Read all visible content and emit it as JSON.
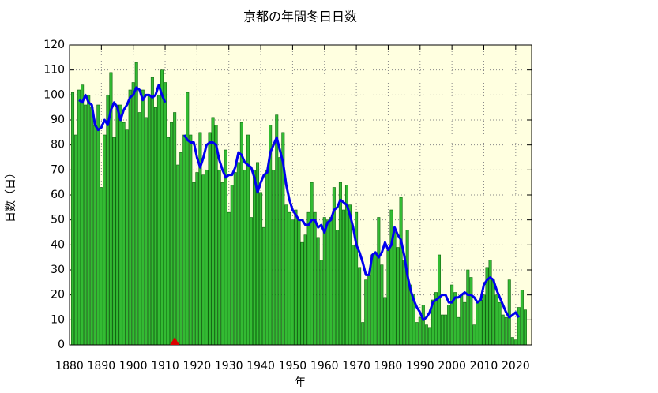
{
  "chart_data": {
    "type": "bar",
    "title": "京都の年間冬日日数",
    "xlabel": "年",
    "ylabel": "日数（日）",
    "x": [
      1881,
      1882,
      1883,
      1884,
      1885,
      1886,
      1887,
      1888,
      1889,
      1890,
      1891,
      1892,
      1893,
      1894,
      1895,
      1896,
      1897,
      1898,
      1899,
      1900,
      1901,
      1902,
      1903,
      1904,
      1905,
      1906,
      1907,
      1908,
      1909,
      1910,
      1911,
      1912,
      1913,
      1914,
      1915,
      1916,
      1917,
      1918,
      1919,
      1920,
      1921,
      1922,
      1923,
      1924,
      1925,
      1926,
      1927,
      1928,
      1929,
      1930,
      1931,
      1932,
      1933,
      1934,
      1935,
      1936,
      1937,
      1938,
      1939,
      1940,
      1941,
      1942,
      1943,
      1944,
      1945,
      1946,
      1947,
      1948,
      1949,
      1950,
      1951,
      1952,
      1953,
      1954,
      1955,
      1956,
      1957,
      1958,
      1959,
      1960,
      1961,
      1962,
      1963,
      1964,
      1965,
      1966,
      1967,
      1968,
      1969,
      1970,
      1971,
      1972,
      1973,
      1974,
      1975,
      1976,
      1977,
      1978,
      1979,
      1980,
      1981,
      1982,
      1983,
      1984,
      1985,
      1986,
      1987,
      1988,
      1989,
      1990,
      1991,
      1992,
      1993,
      1994,
      1995,
      1996,
      1997,
      1998,
      1999,
      2000,
      2001,
      2002,
      2003,
      2004,
      2005,
      2006,
      2007,
      2008,
      2009,
      2010,
      2011,
      2012,
      2013,
      2014,
      2015,
      2016,
      2017,
      2018,
      2019,
      2020,
      2021,
      2022,
      2023
    ],
    "series": [
      {
        "type": "bar",
        "color": "#33bb33",
        "edge": "#116611",
        "values": [
          101,
          84,
          102,
          104,
          96,
          100,
          95,
          88,
          96,
          63,
          84,
          100,
          109,
          83,
          96,
          96,
          89,
          86,
          102,
          105,
          113,
          93,
          102,
          91,
          100,
          107,
          95,
          100,
          110,
          105,
          83,
          89,
          93,
          72,
          77,
          84,
          101,
          84,
          65,
          69,
          85,
          68,
          70,
          85,
          91,
          88,
          70,
          65,
          78,
          53,
          64,
          69,
          73,
          89,
          70,
          84,
          51,
          70,
          73,
          61,
          47,
          70,
          88,
          70,
          92,
          75,
          85,
          56,
          53,
          50,
          54,
          50,
          41,
          44,
          53,
          65,
          53,
          43,
          34,
          51,
          50,
          51,
          63,
          46,
          65,
          54,
          64,
          56,
          40,
          53,
          31,
          9,
          26,
          28,
          36,
          37,
          51,
          32,
          19,
          38,
          54,
          45,
          39,
          59,
          34,
          46,
          24,
          20,
          9,
          11,
          16,
          8,
          7,
          18,
          21,
          36,
          12,
          12,
          16,
          24,
          21,
          11,
          20,
          17,
          30,
          27,
          8,
          17,
          18,
          20,
          31,
          34,
          26,
          20,
          17,
          12,
          11,
          26,
          3,
          2,
          15,
          22,
          14
        ]
      },
      {
        "type": "line",
        "color": "#0000ee",
        "values": [
          null,
          null,
          98,
          97,
          100,
          97,
          96,
          88,
          86,
          87,
          90,
          88,
          94,
          97,
          95,
          90,
          94,
          96,
          99,
          100,
          103,
          102,
          98,
          100,
          100,
          99,
          100,
          104,
          100,
          97,
          null,
          null,
          null,
          null,
          null,
          84,
          82,
          81,
          81,
          75,
          71,
          75,
          80,
          81,
          81,
          80,
          74,
          70,
          67,
          68,
          68,
          71,
          77,
          76,
          73,
          72,
          71,
          67,
          61,
          65,
          68,
          69,
          77,
          80,
          83,
          78,
          73,
          64,
          58,
          54,
          52,
          50,
          50,
          48,
          48,
          50,
          50,
          47,
          48,
          45,
          49,
          50,
          54,
          55,
          58,
          57,
          56,
          52,
          47,
          40,
          37,
          33,
          28,
          28,
          36,
          37,
          35,
          37,
          41,
          38,
          40,
          47,
          44,
          42,
          36,
          28,
          22,
          18,
          15,
          13,
          10,
          11,
          13,
          17,
          18,
          19,
          20,
          20,
          17,
          17,
          19,
          19,
          20,
          21,
          20,
          20,
          19,
          17,
          18,
          24,
          26,
          27,
          26,
          22,
          19,
          16,
          13,
          11,
          12,
          13,
          11,
          null,
          null
        ]
      }
    ],
    "marker": {
      "x": 1913,
      "y": 0,
      "color": "#dd0000"
    },
    "xlim": [
      1880,
      2025
    ],
    "ylim": [
      0,
      120
    ],
    "xticks": [
      1880,
      1890,
      1900,
      1910,
      1920,
      1930,
      1940,
      1950,
      1960,
      1970,
      1980,
      1990,
      2000,
      2010,
      2020
    ],
    "yticks": [
      0,
      10,
      20,
      30,
      40,
      50,
      60,
      70,
      80,
      90,
      100,
      110,
      120
    ],
    "grid": true,
    "background": "#ffffe0"
  }
}
